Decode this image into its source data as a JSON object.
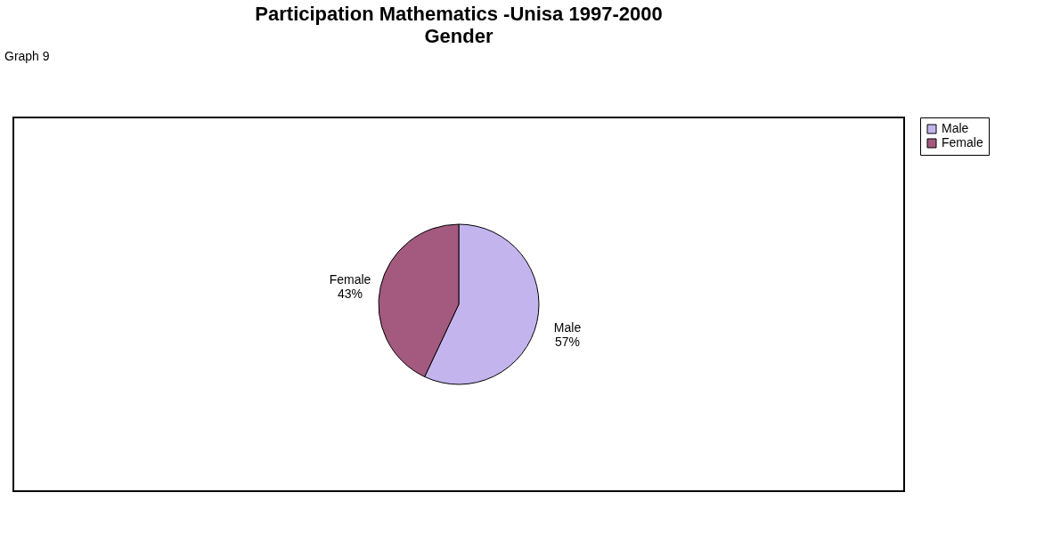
{
  "chart_data": {
    "type": "pie",
    "title": "Participation Mathematics -Unisa 1997-2000",
    "subtitle": "Gender",
    "categories": [
      "Male",
      "Female"
    ],
    "values": [
      57,
      43
    ],
    "colors": [
      "#c4b4ee",
      "#a35a7e"
    ],
    "value_labels": [
      "57%",
      "43%"
    ],
    "legend": "right",
    "annotations": [
      "Graph 9"
    ]
  }
}
